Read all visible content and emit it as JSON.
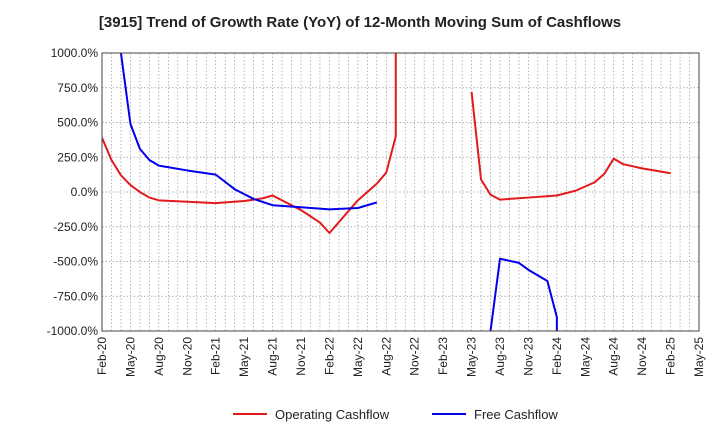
{
  "chart_data": {
    "type": "line",
    "title": "[3915]  Trend of Growth Rate (YoY) of 12-Month Moving Sum of Cashflows",
    "xlabel": "",
    "ylabel": "",
    "ylim": [
      -1000,
      1000
    ],
    "yticks": [
      1000,
      750,
      500,
      250,
      0,
      -250,
      -500,
      -750,
      -1000
    ],
    "ytick_labels": [
      "1000.0%",
      "750.0%",
      "500.0%",
      "250.0%",
      "0.0%",
      "-250.0%",
      "-500.0%",
      "-750.0%",
      "-1000.0%"
    ],
    "xlim": [
      "2020-02",
      "2025-05"
    ],
    "xtick_labels": [
      "Feb-20",
      "May-20",
      "Aug-20",
      "Nov-20",
      "Feb-21",
      "May-21",
      "Aug-21",
      "Nov-21",
      "Feb-22",
      "May-22",
      "Aug-22",
      "Nov-22",
      "Feb-23",
      "May-23",
      "Aug-23",
      "Nov-23",
      "Feb-24",
      "May-24",
      "Aug-24",
      "Nov-24",
      "Feb-25",
      "May-25"
    ],
    "grid": true,
    "legend": "bottom",
    "series": [
      {
        "name": "Operating Cashflow",
        "color": "#e31a1c",
        "points": [
          [
            "2020-02",
            390
          ],
          [
            "2020-03",
            230
          ],
          [
            "2020-04",
            120
          ],
          [
            "2020-05",
            50
          ],
          [
            "2020-06",
            0
          ],
          [
            "2020-07",
            -40
          ],
          [
            "2020-08",
            -60
          ],
          [
            "2020-11",
            -70
          ],
          [
            "2021-02",
            -80
          ],
          [
            "2021-05",
            -65
          ],
          [
            "2021-07",
            -45
          ],
          [
            "2021-08",
            -25
          ],
          [
            "2021-09",
            -60
          ],
          [
            "2021-11",
            -130
          ],
          [
            "2022-01",
            -220
          ],
          [
            "2022-02",
            -295
          ],
          [
            "2022-05",
            -60
          ],
          [
            "2022-07",
            60
          ],
          [
            "2022-08",
            140
          ],
          [
            "2022-09",
            400
          ],
          [
            "2022-09",
            1000
          ],
          null,
          [
            "2023-05",
            720
          ],
          [
            "2023-06",
            90
          ],
          [
            "2023-07",
            -20
          ],
          [
            "2023-08",
            -55
          ],
          [
            "2023-11",
            -40
          ],
          [
            "2024-02",
            -25
          ],
          [
            "2024-04",
            10
          ],
          [
            "2024-06",
            70
          ],
          [
            "2024-07",
            130
          ],
          [
            "2024-08",
            240
          ],
          [
            "2024-09",
            200
          ],
          [
            "2024-11",
            170
          ],
          [
            "2025-02",
            135
          ]
        ]
      },
      {
        "name": "Free Cashflow",
        "color": "#0000ee",
        "points": [
          [
            "2020-04",
            1000
          ],
          [
            "2020-05",
            490
          ],
          [
            "2020-06",
            310
          ],
          [
            "2020-07",
            230
          ],
          [
            "2020-08",
            190
          ],
          [
            "2020-11",
            155
          ],
          [
            "2021-02",
            125
          ],
          [
            "2021-04",
            20
          ],
          [
            "2021-06",
            -50
          ],
          [
            "2021-08",
            -95
          ],
          [
            "2021-11",
            -110
          ],
          [
            "2022-02",
            -125
          ],
          [
            "2022-05",
            -115
          ],
          [
            "2022-07",
            -75
          ],
          null,
          [
            "2023-07",
            -1000
          ],
          [
            "2023-08",
            -480
          ],
          [
            "2023-10",
            -510
          ],
          [
            "2023-11",
            -560
          ],
          [
            "2024-01",
            -640
          ],
          [
            "2024-02",
            -900
          ],
          [
            "2024-02",
            -1000
          ]
        ]
      }
    ]
  }
}
